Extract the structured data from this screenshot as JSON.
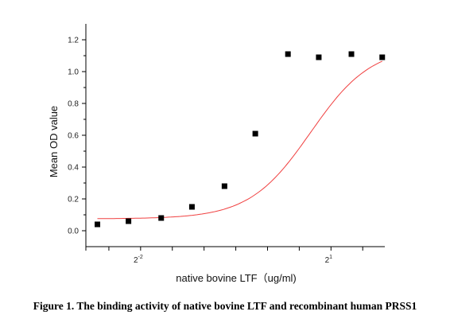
{
  "chart_data": {
    "type": "scatter",
    "xlabel": "native bovine LTF（ug/ml)",
    "ylabel": "Mean OD value",
    "xscale": "log2",
    "xlim": [
      0.1375,
      3.6
    ],
    "ylim": [
      -0.1,
      1.3
    ],
    "x_ticks": [
      {
        "value": 0.25,
        "base": "2",
        "exp": "-2"
      },
      {
        "value": 2,
        "base": "2",
        "exp": "1"
      }
    ],
    "y_ticks": [
      "0.0",
      "0.2",
      "0.4",
      "0.6",
      "0.8",
      "1.0",
      "1.2"
    ],
    "grid": false,
    "legend": "none",
    "series": [
      {
        "type": "scatter",
        "marker": "square",
        "color": "#000000",
        "x": [
          0.156,
          0.219,
          0.313,
          0.438,
          0.625,
          0.875,
          1.25,
          1.75,
          2.5,
          3.5
        ],
        "y": [
          0.04,
          0.06,
          0.08,
          0.15,
          0.28,
          0.61,
          1.11,
          1.09,
          1.11,
          1.09
        ]
      },
      {
        "type": "line",
        "fit": "logistic",
        "color": "#f04040",
        "params": {
          "bottom": 0.075,
          "top": 1.16,
          "ec50": 1.6,
          "hill": 3.0
        }
      }
    ]
  },
  "caption": "Figure 1. The binding activity of native bovine LTF and recombinant human PRSS1"
}
